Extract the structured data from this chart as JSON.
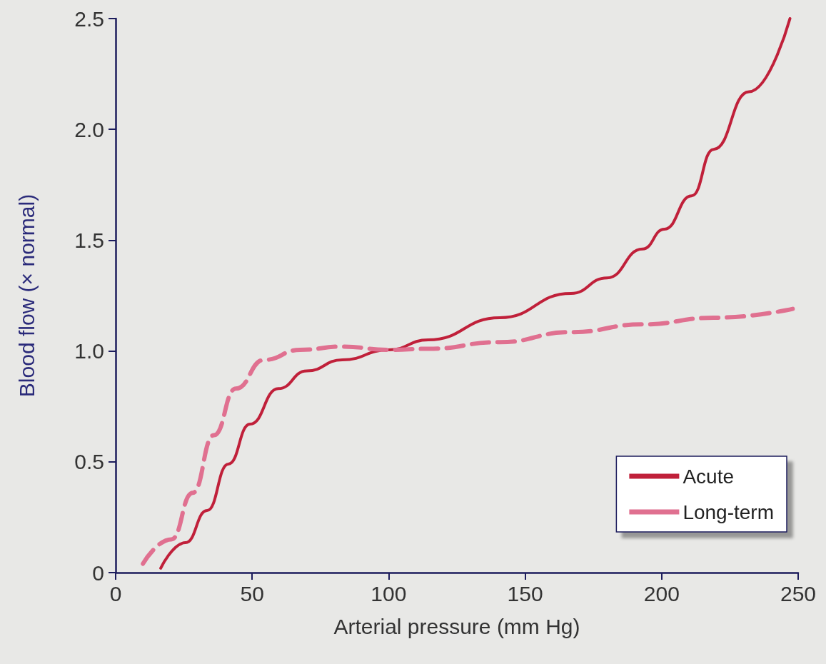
{
  "chart_data": {
    "type": "line",
    "xlabel": "Arterial pressure (mm Hg)",
    "ylabel": "Blood flow (× normal)",
    "xlim": [
      0,
      250
    ],
    "xticks": [
      0,
      50,
      100,
      150,
      200,
      250
    ],
    "ylim": [
      0,
      2.5
    ],
    "yticks": [
      0,
      {
        "value": 0.5,
        "label": "0.5"
      },
      {
        "value": 1,
        "label": "1.0"
      },
      {
        "value": 1.5,
        "label": "1.5"
      },
      {
        "value": 2,
        "label": "2.0"
      },
      {
        "value": 2.5,
        "label": "2.5"
      }
    ],
    "grid": false,
    "legend": "bottom right",
    "marker": "none",
    "series": [
      {
        "name": "Acute",
        "color": "#c0203a",
        "line_style": "solid",
        "x": [
          16.5,
          25.6,
          33.5,
          41.3,
          49.2,
          59.6,
          70,
          83,
          100,
          114.5,
          140.7,
          166.8,
          180,
          193,
          201,
          211,
          219,
          232,
          247
        ],
        "values": [
          0.02,
          0.135,
          0.28,
          0.49,
          0.67,
          0.83,
          0.91,
          0.96,
          1.005,
          1.05,
          1.15,
          1.26,
          1.33,
          1.46,
          1.55,
          1.7,
          1.91,
          2.17,
          2.5
        ]
      },
      {
        "name": "Long-term",
        "color": "#e07090",
        "line_style": "dashed",
        "x": [
          10,
          20.4,
          28.2,
          36,
          44,
          54.4,
          67.5,
          83,
          100,
          114.5,
          140.7,
          166.8,
          193,
          219,
          248
        ],
        "values": [
          0.04,
          0.15,
          0.36,
          0.62,
          0.83,
          0.96,
          1.005,
          1.02,
          1.005,
          1.01,
          1.04,
          1.085,
          1.12,
          1.15,
          1.19
        ]
      }
    ]
  }
}
